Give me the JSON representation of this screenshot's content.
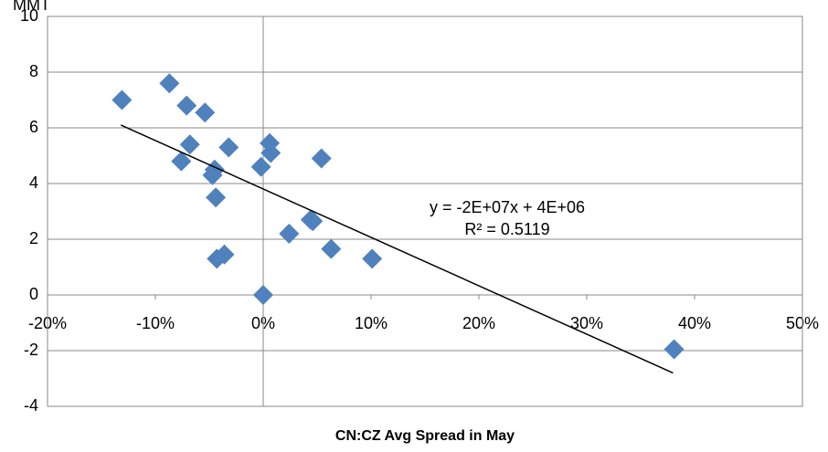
{
  "chart_data": {
    "type": "scatter",
    "y_label": "MMT",
    "x_label": "CN:CZ Avg Spread in May",
    "x": [
      -13.1,
      -8.7,
      -7.1,
      -5.4,
      -6.8,
      -7.6,
      -3.2,
      -4.5,
      -4.7,
      -4.4,
      -4.3,
      -3.6,
      0,
      -0.2,
      0.6,
      0.7,
      2.4,
      4.4,
      4.6,
      5.4,
      6.3,
      10.1,
      38.1
    ],
    "values": [
      7.0,
      7.6,
      6.8,
      6.55,
      5.4,
      4.8,
      5.3,
      4.5,
      4.3,
      3.5,
      1.3,
      1.45,
      0,
      4.6,
      5.45,
      5.1,
      2.2,
      2.7,
      2.65,
      4.9,
      1.65,
      1.3,
      -1.95
    ],
    "color": "#4f81bd",
    "trendline": {
      "x": [
        -13.2,
        38
      ],
      "y": [
        6.1,
        -2.8
      ],
      "equation": "y = -2E+07x + 4E+06",
      "r2": "R² = 0.5119"
    },
    "xlim": [
      -20,
      50
    ],
    "xticks": [
      {
        "value": -20,
        "label": "-20%"
      },
      {
        "value": -10,
        "label": "-10%"
      },
      {
        "value": 0,
        "label": "0%"
      },
      {
        "value": 10,
        "label": "10%"
      },
      {
        "value": 20,
        "label": "20%"
      },
      {
        "value": 30,
        "label": "30%"
      },
      {
        "value": 40,
        "label": "40%"
      },
      {
        "value": 50,
        "label": "50%"
      }
    ],
    "ylim": [
      -4,
      10
    ],
    "yticks": [
      -4,
      -2,
      0,
      2,
      4,
      6,
      8,
      10
    ],
    "grid": true
  }
}
